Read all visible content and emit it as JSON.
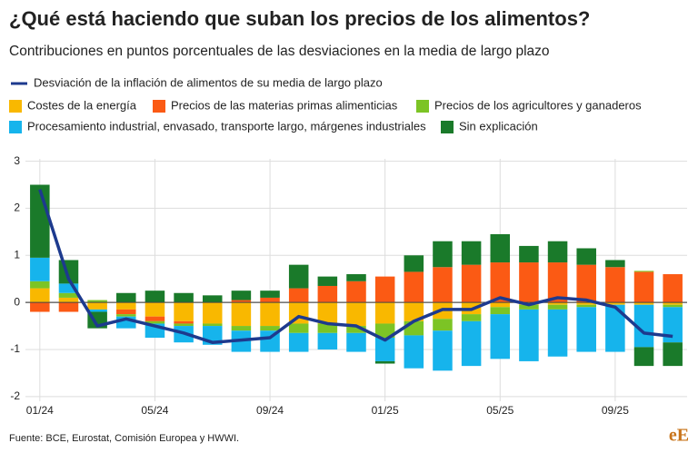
{
  "chart_data": {
    "type": "stacked-bar-line",
    "title": "¿Qué está haciendo que suban los precios de los alimentos?",
    "subtitle": "Contribuciones en puntos porcentuales de las desviaciones en la media de largo plazo",
    "source": "Fuente: BCE, Eurostat, Comisión Europea y HWWI.",
    "logo": "eE",
    "categories": [
      "01/24",
      null,
      null,
      null,
      "05/24",
      null,
      null,
      null,
      "09/24",
      null,
      null,
      null,
      "01/25",
      null,
      null,
      null,
      "05/25",
      null,
      null,
      null,
      "09/25",
      null,
      null
    ],
    "series": [
      {
        "name": "Costes de la energía",
        "color": "#f9b800",
        "values": [
          0.3,
          0.1,
          -0.15,
          -0.15,
          -0.3,
          -0.4,
          -0.45,
          -0.5,
          -0.5,
          -0.45,
          -0.45,
          -0.5,
          -0.45,
          -0.4,
          -0.35,
          -0.25,
          -0.1,
          -0.05,
          -0.05,
          -0.05,
          -0.05,
          -0.05,
          -0.05
        ]
      },
      {
        "name": "Precios de las materias primas alimenticias",
        "color": "#fb5a14",
        "values": [
          -0.2,
          -0.2,
          0,
          -0.1,
          -0.1,
          -0.05,
          0,
          0.05,
          0.1,
          0.3,
          0.35,
          0.45,
          0.55,
          0.65,
          0.75,
          0.8,
          0.85,
          0.85,
          0.85,
          0.8,
          0.75,
          0.65,
          0.6
        ]
      },
      {
        "name": "Precios de los agricultores y ganaderos",
        "color": "#7cc425",
        "values": [
          0.15,
          0.1,
          0.05,
          -0.05,
          -0.05,
          -0.05,
          -0.05,
          -0.1,
          -0.1,
          -0.2,
          -0.2,
          -0.15,
          -0.3,
          -0.3,
          -0.25,
          -0.15,
          -0.15,
          -0.1,
          -0.1,
          -0.05,
          0,
          0.02,
          -0.05
        ]
      },
      {
        "name": "Procesamiento industrial, envasado, transporte largo, márgenes industriales",
        "color": "#16b4ec",
        "values": [
          0.5,
          0.2,
          -0.05,
          -0.25,
          -0.3,
          -0.35,
          -0.4,
          -0.45,
          -0.45,
          -0.4,
          -0.35,
          -0.4,
          -0.5,
          -0.7,
          -0.85,
          -0.95,
          -0.95,
          -1.1,
          -1.0,
          -0.95,
          -1.0,
          -0.9,
          -0.75
        ]
      },
      {
        "name": "Sin explicación",
        "color": "#1a7a2a",
        "values": [
          1.55,
          0.5,
          -0.35,
          0.2,
          0.25,
          0.2,
          0.15,
          0.2,
          0.15,
          0.5,
          0.2,
          0.15,
          -0.05,
          0.35,
          0.55,
          0.5,
          0.6,
          0.35,
          0.45,
          0.35,
          0.15,
          -0.4,
          -0.5
        ]
      }
    ],
    "line": {
      "name": "Desviación de la inflación de alimentos de su media de largo plazo",
      "color": "#1d3a8e",
      "values": [
        2.4,
        0.5,
        -0.5,
        -0.35,
        -0.5,
        -0.65,
        -0.85,
        -0.8,
        -0.75,
        -0.3,
        -0.45,
        -0.5,
        -0.8,
        -0.4,
        -0.15,
        -0.15,
        0.1,
        -0.05,
        0.1,
        0.05,
        -0.1,
        -0.65,
        -0.72
      ]
    },
    "ylim": [
      -2.1,
      3.05
    ],
    "yticks": [
      3,
      2,
      1,
      0,
      -1,
      -2
    ],
    "grid": true
  }
}
